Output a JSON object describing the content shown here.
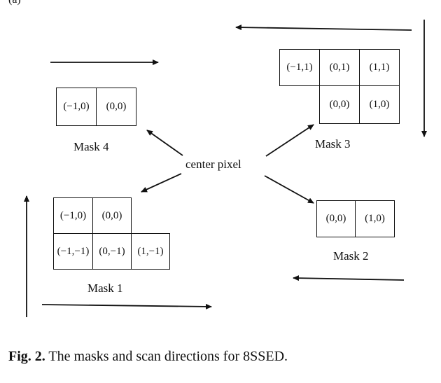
{
  "top_fragment": "(a)",
  "center_label": "center pixel",
  "mask1": {
    "label": "Mask 1",
    "cells": [
      "(−1,0)",
      "(0,0)",
      "(−1,−1)",
      "(0,−1)",
      "(1,−1)"
    ]
  },
  "mask2": {
    "label": "Mask 2",
    "cells": [
      "(0,0)",
      "(1,0)"
    ]
  },
  "mask3": {
    "label": "Mask 3",
    "cells": [
      "(−1,1)",
      "(0,1)",
      "(1,1)",
      "(0,0)",
      "(1,0)"
    ]
  },
  "mask4": {
    "label": "Mask 4",
    "cells": [
      "(−1,0)",
      "(0,0)"
    ]
  },
  "caption": {
    "prefix": "Fig. 2.",
    "text": "The masks and scan directions for 8SSED."
  }
}
